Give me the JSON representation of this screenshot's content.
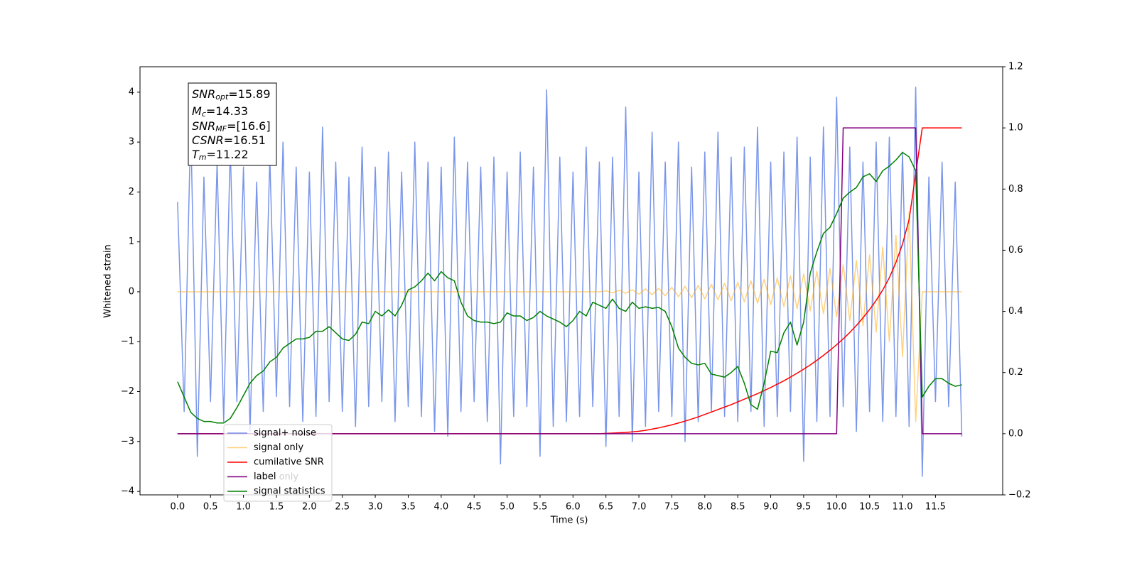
{
  "chart_data": {
    "type": "line",
    "xlabel": "Time (s)",
    "ylabel": "Whitened strain",
    "xlim": [
      -0.57,
      12.52
    ],
    "ylim": [
      -4.07,
      4.51
    ],
    "y2lim": [
      -0.2,
      1.2
    ],
    "grid": false,
    "xticks": [
      {
        "value": 0,
        "label": "0.0"
      },
      0.5,
      {
        "value": 1,
        "label": "1.0"
      },
      1.5,
      {
        "value": 2,
        "label": "2.0"
      },
      2.5,
      {
        "value": 3,
        "label": "3.0"
      },
      3.5,
      {
        "value": 4,
        "label": "4.0"
      },
      4.5,
      {
        "value": 5,
        "label": "5.0"
      },
      5.5,
      {
        "value": 6,
        "label": "6.0"
      },
      6.5,
      {
        "value": 7,
        "label": "7.0"
      },
      7.5,
      {
        "value": 8,
        "label": "8.0"
      },
      8.5,
      {
        "value": 9,
        "label": "9.0"
      },
      9.5,
      {
        "value": 10,
        "label": "10.0"
      },
      10.5,
      {
        "value": 11,
        "label": "11.0"
      },
      11.5
    ],
    "yticks": [
      {
        "value": -4,
        "label": "−4"
      },
      {
        "value": -3,
        "label": "−3"
      },
      {
        "value": -2,
        "label": "−2"
      },
      {
        "value": -1,
        "label": "−1"
      },
      0,
      1,
      2,
      3,
      4
    ],
    "y2ticks": [
      {
        "value": -0.2,
        "label": "−0.2"
      },
      {
        "value": 0,
        "label": "0.0"
      },
      0.2,
      0.4,
      0.6,
      0.8,
      {
        "value": 1,
        "label": "1.0"
      },
      1.2
    ],
    "annotation_box": [
      {
        "symbol": "SNR",
        "sub": "opt",
        "text": "=15.89"
      },
      {
        "symbol": "M",
        "sub": "c",
        "text": "=14.33"
      },
      {
        "symbol": "SNR",
        "sub": "MF",
        "text": "=[16.6]"
      },
      {
        "symbol": "CSNR",
        "sub": "",
        "text": "=16.51"
      },
      {
        "symbol": "T",
        "sub": "m",
        "text": "=11.22"
      }
    ],
    "hidden_legend_text": "label only",
    "x": [
      0,
      0.1,
      0.2,
      0.3,
      0.4,
      0.5,
      0.6,
      0.7,
      0.8,
      0.9,
      1,
      1.1,
      1.2,
      1.3,
      1.4,
      1.5,
      1.6,
      1.7,
      1.8,
      1.9,
      2,
      2.1,
      2.2,
      2.3,
      2.4,
      2.5,
      2.6,
      2.7,
      2.8,
      2.9,
      3,
      3.1,
      3.2,
      3.3,
      3.4,
      3.5,
      3.6,
      3.7,
      3.8,
      3.9,
      4,
      4.1,
      4.2,
      4.3,
      4.4,
      4.5,
      4.6,
      4.7,
      4.8,
      4.9,
      5,
      5.1,
      5.2,
      5.3,
      5.4,
      5.5,
      5.6,
      5.7,
      5.8,
      5.9,
      6,
      6.1,
      6.2,
      6.3,
      6.4,
      6.5,
      6.6,
      6.7,
      6.8,
      6.9,
      7,
      7.1,
      7.2,
      7.3,
      7.4,
      7.5,
      7.6,
      7.7,
      7.8,
      7.9,
      8,
      8.1,
      8.2,
      8.3,
      8.4,
      8.5,
      8.6,
      8.7,
      8.8,
      8.9,
      9,
      9.1,
      9.2,
      9.3,
      9.4,
      9.5,
      9.6,
      9.7,
      9.8,
      9.9,
      10,
      10.1,
      10.2,
      10.3,
      10.4,
      10.5,
      10.6,
      10.7,
      10.8,
      10.9,
      11,
      11.1,
      11.2,
      11.3,
      11.4,
      11.5,
      11.6,
      11.7,
      11.8,
      11.9
    ],
    "series": [
      {
        "name": "signal+ noise",
        "color": "#4169e1",
        "opacity": 0.7,
        "values": [
          1.8,
          -2.4,
          3.4,
          -3.3,
          2.3,
          -2.2,
          2.6,
          -2.6,
          2.9,
          -2.2,
          2.5,
          -2.8,
          2.2,
          -2.4,
          2.7,
          -2.1,
          3.0,
          -2.3,
          2.5,
          -2.6,
          2.4,
          -2.5,
          3.3,
          -2.2,
          2.6,
          -2.4,
          2.3,
          -2.7,
          2.9,
          -2.3,
          2.5,
          -2.2,
          2.8,
          -2.6,
          2.4,
          -2.3,
          3.0,
          -2.5,
          2.6,
          -2.8,
          2.5,
          -2.9,
          3.1,
          -2.4,
          2.6,
          -2.2,
          2.5,
          -2.6,
          2.7,
          -3.45,
          2.4,
          -2.5,
          2.8,
          -2.3,
          2.5,
          -3.3,
          4.05,
          -2.7,
          2.7,
          -2.6,
          2.4,
          -2.5,
          2.9,
          -2.3,
          2.6,
          -3.1,
          2.7,
          -2.5,
          3.7,
          -3.0,
          2.4,
          -2.7,
          3.2,
          -2.4,
          2.6,
          -2.5,
          3.0,
          -3.0,
          2.5,
          -2.6,
          2.8,
          -2.4,
          3.2,
          -2.5,
          2.7,
          -2.6,
          2.9,
          -2.4,
          3.3,
          -2.7,
          2.6,
          -2.5,
          2.8,
          -2.4,
          3.1,
          -3.4,
          2.7,
          -2.6,
          3.3,
          -2.5,
          3.9,
          -2.3,
          2.9,
          -2.8,
          2.6,
          -2.4,
          3.0,
          -2.6,
          3.1,
          -2.5,
          2.8,
          -2.7,
          4.1,
          -3.7,
          2.3,
          -2.2,
          2.6,
          -2.3,
          2.2,
          -2.9
        ]
      },
      {
        "name": "signal only",
        "color": "#ffa500",
        "opacity": 0.5,
        "values": [
          0,
          0,
          0,
          0,
          0,
          0,
          0,
          0,
          0,
          0,
          0,
          0,
          0,
          0,
          0,
          0,
          0,
          0,
          0,
          0,
          0,
          0,
          0,
          0,
          0,
          0,
          0,
          0,
          0,
          0,
          0,
          0,
          0,
          0,
          0,
          0,
          0,
          0,
          0,
          0,
          0,
          0,
          0,
          0,
          0,
          0,
          0,
          0,
          0,
          0,
          0,
          0,
          0,
          0,
          0,
          0,
          0,
          0,
          0,
          0,
          0,
          0,
          0,
          0,
          0,
          0.02,
          -0.02,
          0.03,
          -0.03,
          0.04,
          -0.05,
          0.06,
          -0.06,
          0.07,
          -0.08,
          0.09,
          -0.1,
          0.11,
          -0.12,
          0.13,
          -0.14,
          0.15,
          -0.16,
          0.17,
          -0.18,
          0.19,
          -0.2,
          0.22,
          -0.23,
          0.25,
          -0.26,
          0.28,
          -0.3,
          0.32,
          -0.34,
          0.36,
          -0.38,
          0.41,
          -0.44,
          0.47,
          -0.5,
          0.54,
          -0.58,
          0.63,
          -0.68,
          0.74,
          -0.81,
          0.9,
          -1.0,
          1.13,
          -1.3,
          1.6,
          -2.6,
          0,
          0,
          0,
          0,
          0,
          0,
          0
        ]
      },
      {
        "name": "cumilative SNR",
        "color": "#ff0000",
        "axis": "y2",
        "values": [
          0,
          0,
          0,
          0,
          0,
          0,
          0,
          0,
          0,
          0,
          0,
          0,
          0,
          0,
          0,
          0,
          0,
          0,
          0,
          0,
          0,
          0,
          0,
          0,
          0,
          0,
          0,
          0,
          0,
          0,
          0,
          0,
          0,
          0,
          0,
          0,
          0,
          0,
          0,
          0,
          0,
          0,
          0,
          0,
          0,
          0,
          0,
          0,
          0,
          0,
          0,
          0,
          0,
          0,
          0,
          0,
          0,
          0,
          0,
          0,
          0,
          0,
          0,
          0,
          0,
          0.001,
          0.002,
          0.003,
          0.004,
          0.006,
          0.008,
          0.011,
          0.015,
          0.019,
          0.024,
          0.029,
          0.035,
          0.041,
          0.048,
          0.055,
          0.063,
          0.071,
          0.079,
          0.087,
          0.095,
          0.104,
          0.113,
          0.122,
          0.131,
          0.141,
          0.151,
          0.162,
          0.173,
          0.185,
          0.198,
          0.211,
          0.225,
          0.24,
          0.256,
          0.273,
          0.291,
          0.31,
          0.331,
          0.354,
          0.379,
          0.406,
          0.436,
          0.47,
          0.51,
          0.56,
          0.62,
          0.7,
          0.85,
          1,
          1,
          1,
          1,
          1,
          1,
          1
        ]
      },
      {
        "name": "label",
        "color": "#800080",
        "axis": "y2",
        "values": [
          0,
          0,
          0,
          0,
          0,
          0,
          0,
          0,
          0,
          0,
          0,
          0,
          0,
          0,
          0,
          0,
          0,
          0,
          0,
          0,
          0,
          0,
          0,
          0,
          0,
          0,
          0,
          0,
          0,
          0,
          0,
          0,
          0,
          0,
          0,
          0,
          0,
          0,
          0,
          0,
          0,
          0,
          0,
          0,
          0,
          0,
          0,
          0,
          0,
          0,
          0,
          0,
          0,
          0,
          0,
          0,
          0,
          0,
          0,
          0,
          0,
          0,
          0,
          0,
          0,
          0,
          0,
          0,
          0,
          0,
          0,
          0,
          0,
          0,
          0,
          0,
          0,
          0,
          0,
          0,
          0,
          0,
          0,
          0,
          0,
          0,
          0,
          0,
          0,
          0,
          0,
          0,
          0,
          0,
          0,
          0,
          0,
          0,
          0,
          0,
          0,
          1,
          1,
          1,
          1,
          1,
          1,
          1,
          1,
          1,
          1,
          1,
          1,
          0,
          0,
          0,
          0,
          0,
          0,
          0
        ]
      },
      {
        "name": "signal statistics",
        "color": "#008000",
        "axis": "y2",
        "values": [
          0.17,
          0.12,
          0.07,
          0.05,
          0.04,
          0.04,
          0.035,
          0.035,
          0.05,
          0.085,
          0.125,
          0.165,
          0.19,
          0.205,
          0.235,
          0.25,
          0.28,
          0.295,
          0.31,
          0.31,
          0.315,
          0.335,
          0.335,
          0.35,
          0.33,
          0.31,
          0.305,
          0.325,
          0.365,
          0.36,
          0.4,
          0.385,
          0.405,
          0.385,
          0.42,
          0.47,
          0.48,
          0.5,
          0.525,
          0.5,
          0.53,
          0.51,
          0.5,
          0.43,
          0.385,
          0.37,
          0.365,
          0.365,
          0.36,
          0.365,
          0.395,
          0.385,
          0.385,
          0.37,
          0.38,
          0.4,
          0.385,
          0.375,
          0.365,
          0.35,
          0.37,
          0.4,
          0.385,
          0.43,
          0.42,
          0.41,
          0.44,
          0.41,
          0.4,
          0.43,
          0.41,
          0.415,
          0.41,
          0.413,
          0.4,
          0.35,
          0.28,
          0.25,
          0.23,
          0.225,
          0.23,
          0.195,
          0.19,
          0.185,
          0.2,
          0.22,
          0.165,
          0.095,
          0.08,
          0.165,
          0.27,
          0.265,
          0.33,
          0.365,
          0.29,
          0.365,
          0.525,
          0.595,
          0.655,
          0.675,
          0.72,
          0.77,
          0.79,
          0.805,
          0.84,
          0.85,
          0.825,
          0.86,
          0.875,
          0.895,
          0.92,
          0.905,
          0.86,
          0.12,
          0.155,
          0.18,
          0.18,
          0.165,
          0.155,
          0.16
        ]
      }
    ]
  }
}
